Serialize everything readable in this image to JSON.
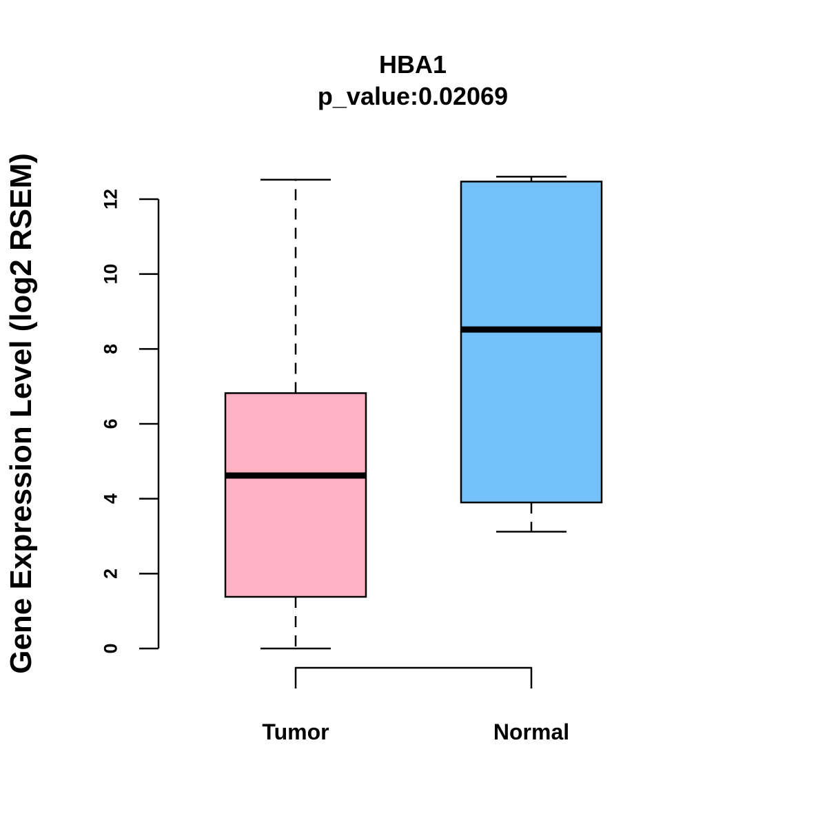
{
  "chart_data": {
    "type": "boxplot",
    "title": "HBA1",
    "subtitle": "p_value:0.02069",
    "ylabel": "Gene Expression Level (log2 RSEM)",
    "xlabel": "",
    "ylim": [
      0,
      12
    ],
    "yticks": [
      0,
      2,
      4,
      6,
      8,
      10,
      12
    ],
    "grid": false,
    "categories": [
      "Tumor",
      "Normal"
    ],
    "series": [
      {
        "category": "Tumor",
        "whisker_low": 0.0,
        "q1": 1.38,
        "median": 4.62,
        "q3": 6.82,
        "whisker_high": 12.52,
        "color": "#FDB1C2"
      },
      {
        "category": "Normal",
        "whisker_low": 3.12,
        "q1": 3.9,
        "median": 8.52,
        "q3": 12.47,
        "whisker_high": 12.6,
        "color": "#74C0F9"
      }
    ],
    "comparison_bracket": {
      "from": "Tumor",
      "to": "Normal"
    }
  }
}
